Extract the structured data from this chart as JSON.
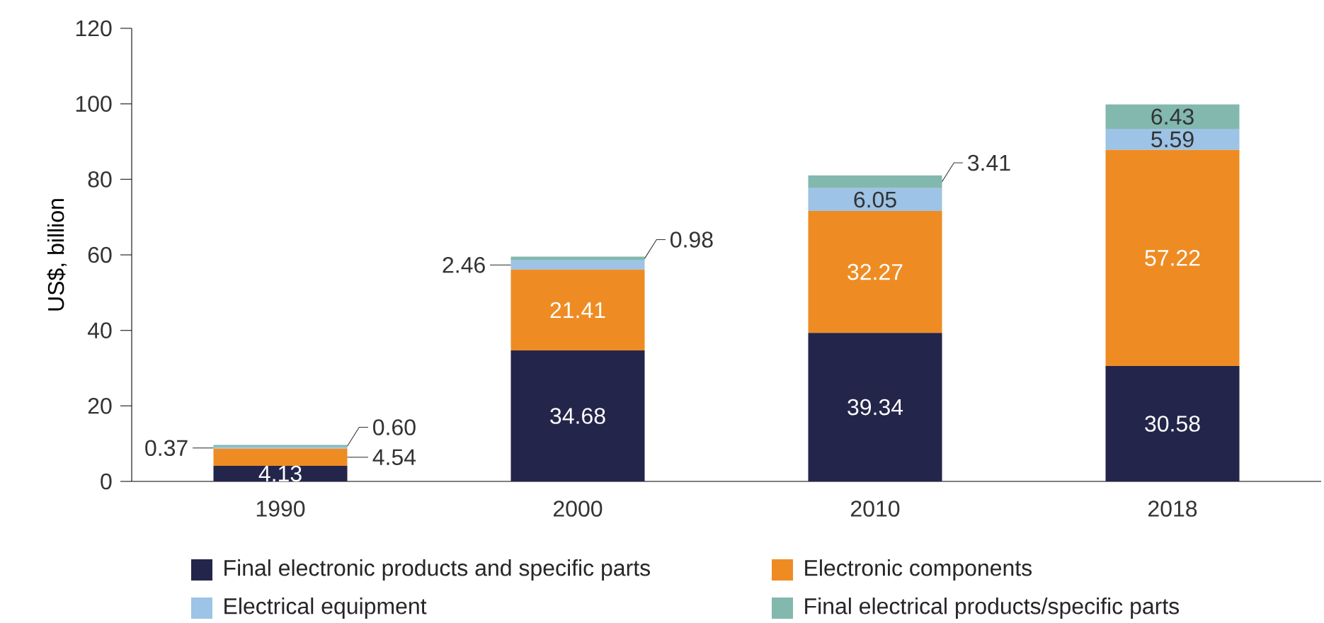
{
  "chart_data": {
    "type": "bar",
    "stacked": true,
    "ylabel": "US$, billion",
    "categories": [
      "1990",
      "2000",
      "2010",
      "2018"
    ],
    "ylim": [
      0,
      120
    ],
    "yticks": [
      0,
      20,
      40,
      60,
      80,
      100,
      120
    ],
    "data_labels": true,
    "legend": "bottom",
    "grid": false,
    "series": [
      {
        "name": "Final electronic products and specific parts",
        "color": "#23254a",
        "values": [
          4.13,
          34.68,
          39.34,
          30.58
        ]
      },
      {
        "name": "Electronic components",
        "color": "#ee8c23",
        "values": [
          4.54,
          21.41,
          32.27,
          57.22
        ]
      },
      {
        "name": "Electrical equipment",
        "color": "#9dc3e6",
        "values": [
          0.37,
          2.46,
          6.05,
          5.59
        ]
      },
      {
        "name": "Final electrical products/specific parts",
        "color": "#82b8ae",
        "values": [
          0.6,
          0.98,
          3.41,
          6.43
        ],
        "value_labels": [
          "0.60",
          "0.98",
          "3.41",
          "6.43"
        ]
      }
    ]
  }
}
